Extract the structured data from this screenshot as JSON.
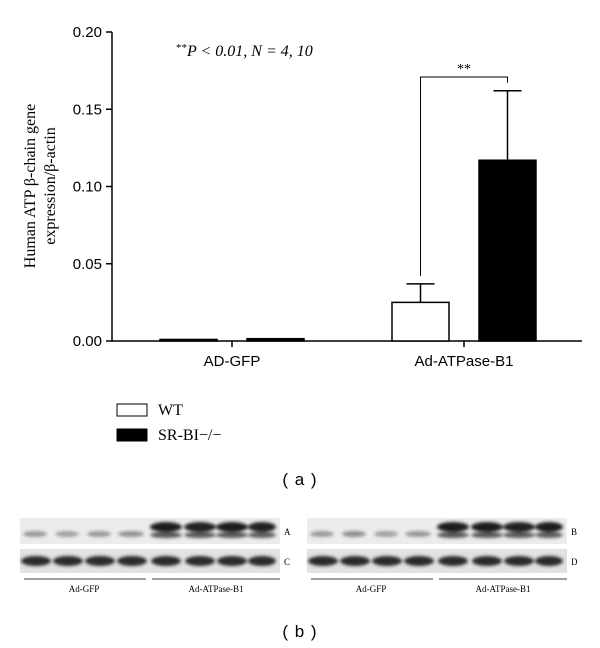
{
  "chart_data": {
    "type": "bar",
    "categories": [
      "AD-GFP",
      "Ad-ATPase-B1"
    ],
    "series": [
      {
        "name": "WT",
        "values": [
          0.001,
          0.025
        ],
        "errors": [
          0.0,
          0.012
        ],
        "color": "#ffffff"
      },
      {
        "name": "SR-BI−/−",
        "values": [
          0.0015,
          0.117
        ],
        "errors": [
          0.0,
          0.045
        ],
        "color": "#000000"
      }
    ],
    "ylim": [
      0,
      0.2
    ],
    "yticks": [
      "0.00",
      "0.05",
      "0.10",
      "0.15",
      "0.20"
    ],
    "ylabel_line1": "Human ATP β-chain gene",
    "ylabel_line2": "expression/β-actin",
    "annotation_stars": "**",
    "annotation_rest": "P < 0.01, N = 4, 10",
    "significance": "**",
    "legend_placement": "bottom-left",
    "grid": false
  },
  "panel_a_label": "( a )",
  "panel_b_label": "( b )",
  "blots": {
    "left": {
      "row_labels": [
        "A",
        "C"
      ],
      "groups": [
        "Ad-GFP",
        "Ad-ATPase-B1"
      ]
    },
    "right": {
      "row_labels": [
        "B",
        "D"
      ],
      "groups": [
        "Ad-GFP",
        "Ad-ATPase-B1"
      ]
    }
  }
}
